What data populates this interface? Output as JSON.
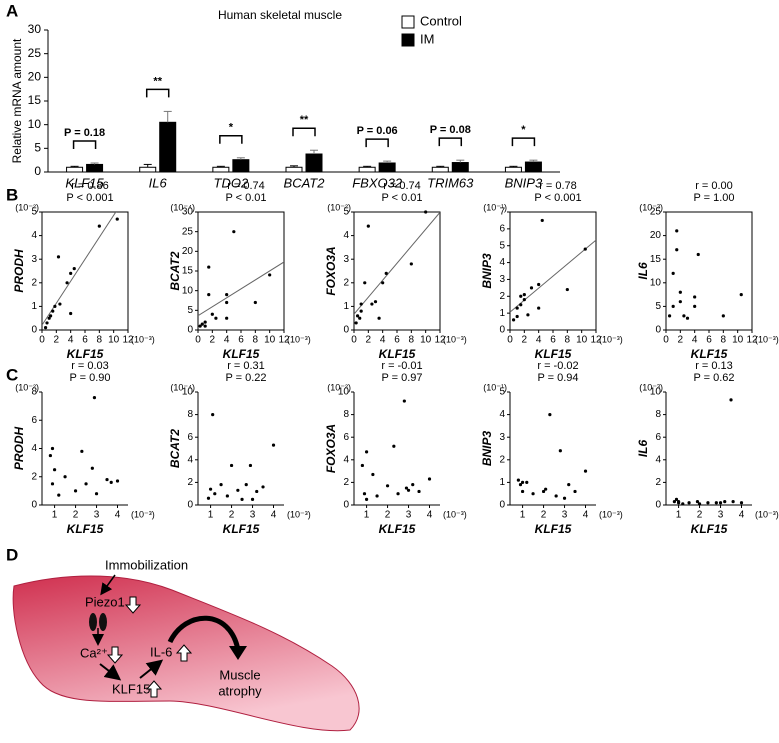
{
  "panel_labels": [
    "A",
    "B",
    "C",
    "D"
  ],
  "chart_data": [
    {
      "type": "bar",
      "title": "Human skeletal muscle",
      "ylabel": "Relative mRNA amount",
      "categories": [
        "KLF15",
        "IL6",
        "TDO2",
        "BCAT2",
        "FBXO32",
        "TRIM63",
        "BNIP3"
      ],
      "series": [
        {
          "name": "Control",
          "color": "#ffffff",
          "values": [
            1.0,
            1.0,
            1.0,
            1.0,
            1.0,
            1.0,
            1.0
          ],
          "errors": [
            0.2,
            0.6,
            0.2,
            0.3,
            0.2,
            0.2,
            0.2
          ]
        },
        {
          "name": "IM",
          "color": "#000000",
          "values": [
            1.6,
            10.5,
            2.6,
            3.8,
            1.9,
            2.0,
            2.1
          ],
          "errors": [
            0.3,
            2.3,
            0.4,
            0.8,
            0.4,
            0.5,
            0.4
          ]
        }
      ],
      "annotations": [
        "P = 0.18",
        "**",
        "*",
        "**",
        "P = 0.06",
        "P = 0.08",
        "*"
      ],
      "ylim": [
        0,
        30
      ],
      "yticks": [
        0,
        5,
        10,
        15,
        20,
        25,
        30
      ],
      "legend": "top-right"
    },
    {
      "type": "scatter",
      "stats": [
        "r = 0.86",
        "P < 0.001"
      ],
      "xlabel": "KLF15",
      "ylabel": "PRODH",
      "x_unit": "(10⁻³)",
      "y_unit": "(10⁻²)",
      "x": [
        0.5,
        0.7,
        1,
        1.2,
        1.5,
        1.8,
        2.3,
        2.5,
        3.5,
        4,
        4.5,
        4,
        8,
        10.5
      ],
      "y": [
        0.1,
        0.3,
        0.5,
        0.6,
        0.8,
        1.0,
        3.1,
        1.1,
        2.0,
        2.4,
        2.6,
        0.7,
        4.4,
        4.7
      ],
      "xlim": [
        0,
        12
      ],
      "xticks": [
        0,
        2,
        4,
        6,
        8,
        10,
        12
      ],
      "ylim": [
        0,
        5
      ],
      "yticks": [
        0,
        1,
        2,
        3,
        4,
        5
      ],
      "frame": "box",
      "trend": true,
      "color": "#000000"
    },
    {
      "type": "scatter",
      "stats": [
        "r = 0.74",
        "P < 0.01"
      ],
      "xlabel": "KLF15",
      "ylabel": "BCAT2",
      "x_unit": "(10⁻³)",
      "y_unit": "(10⁻⁴)",
      "x": [
        0.3,
        0.6,
        1,
        1.5,
        1.5,
        2,
        2.5,
        4,
        4,
        4,
        5,
        8,
        10,
        1
      ],
      "y": [
        1,
        1.5,
        1,
        16,
        9,
        4,
        3,
        3,
        7,
        9,
        25,
        7,
        14,
        2
      ],
      "xlim": [
        0,
        12
      ],
      "xticks": [
        0,
        2,
        4,
        6,
        8,
        10,
        12
      ],
      "ylim": [
        0,
        30
      ],
      "yticks": [
        0,
        5,
        10,
        15,
        20,
        25,
        30
      ],
      "frame": "box",
      "trend": true,
      "color": "#000000"
    },
    {
      "type": "scatter",
      "stats": [
        "r = 0.74",
        "P < 0.01"
      ],
      "xlabel": "KLF15",
      "ylabel": "FOXO3A",
      "x_unit": "(10⁻³)",
      "y_unit": "(10⁻²)",
      "x": [
        0.3,
        0.5,
        0.8,
        1,
        1,
        1.5,
        2,
        2.5,
        3,
        3.5,
        4,
        4.5,
        8,
        10
      ],
      "y": [
        0.3,
        0.6,
        0.5,
        1.1,
        0.8,
        2,
        4.4,
        1.1,
        1.2,
        0.5,
        2,
        2.4,
        2.8,
        5
      ],
      "xlim": [
        0,
        12
      ],
      "xticks": [
        0,
        2,
        4,
        6,
        8,
        10,
        12
      ],
      "ylim": [
        0,
        5
      ],
      "yticks": [
        0,
        1,
        2,
        3,
        4,
        5
      ],
      "frame": "box",
      "trend": true,
      "color": "#000000"
    },
    {
      "type": "scatter",
      "stats": [
        "r = 0.78",
        "P < 0.001"
      ],
      "xlabel": "KLF15",
      "ylabel": "BNIP3",
      "x_unit": "(10⁻³)",
      "y_unit": "(10⁻¹)",
      "x": [
        0.5,
        1,
        1,
        1.5,
        1.5,
        2,
        2,
        2.5,
        3,
        4,
        4,
        4.5,
        8,
        10.5
      ],
      "y": [
        0.6,
        0.8,
        1.3,
        2,
        1.5,
        1.8,
        2.1,
        0.9,
        2.5,
        1.3,
        2.7,
        6.5,
        2.4,
        4.8
      ],
      "xlim": [
        0,
        12
      ],
      "xticks": [
        0,
        2,
        4,
        6,
        8,
        10,
        12
      ],
      "ylim": [
        0,
        7
      ],
      "yticks": [
        0,
        1,
        2,
        3,
        4,
        5,
        6,
        7
      ],
      "frame": "box",
      "trend": true,
      "color": "#000000"
    },
    {
      "type": "scatter",
      "stats": [
        "r = 0.00",
        "P = 1.00"
      ],
      "xlabel": "KLF15",
      "ylabel": "IL6",
      "x_unit": "(10⁻³)",
      "y_unit": "(10⁻³)",
      "x": [
        0.5,
        1,
        1,
        1.5,
        1.5,
        2,
        2,
        2.5,
        3,
        4,
        4,
        4.5,
        8,
        10.5
      ],
      "y": [
        3,
        12,
        5,
        21,
        17,
        6,
        8,
        3,
        2.5,
        5,
        7,
        16,
        3,
        7.5
      ],
      "xlim": [
        0,
        12
      ],
      "xticks": [
        0,
        2,
        4,
        6,
        8,
        10,
        12
      ],
      "ylim": [
        0,
        25
      ],
      "yticks": [
        0,
        5,
        10,
        15,
        20,
        25
      ],
      "frame": "box",
      "trend": false,
      "color": "#000000"
    },
    {
      "type": "scatter",
      "stats": [
        "r = 0.03",
        "P = 0.90"
      ],
      "xlabel": "KLF15",
      "ylabel": "PRODH",
      "x_unit": "(10⁻³)",
      "y_unit": "(10⁻²)",
      "x": [
        0.8,
        0.9,
        0.9,
        1,
        1.2,
        1.5,
        2,
        2.3,
        2.5,
        2.8,
        2.9,
        3,
        3.5,
        3.7,
        4
      ],
      "y": [
        3.5,
        4,
        1.5,
        2.5,
        0.7,
        2,
        1,
        3.8,
        1.5,
        2.6,
        7.6,
        0.8,
        1.8,
        1.6,
        1.7
      ],
      "xlim": [
        0.4,
        4.5
      ],
      "xticks": [
        1,
        2,
        3,
        4
      ],
      "ylim": [
        0,
        8
      ],
      "yticks": [
        0,
        2,
        4,
        6,
        8
      ],
      "frame": "axes",
      "trend": false,
      "color": "#000000"
    },
    {
      "type": "scatter",
      "stats": [
        "r = 0.31",
        "P = 0.22"
      ],
      "xlabel": "KLF15",
      "ylabel": "BCAT2",
      "x_unit": "(10⁻³)",
      "y_unit": "(10⁻⁴)",
      "x": [
        0.9,
        1,
        1.1,
        1.2,
        1.5,
        1.8,
        2,
        2.3,
        2.5,
        2.7,
        2.9,
        3.2,
        3.5,
        4,
        3
      ],
      "y": [
        0.6,
        1.4,
        8,
        1,
        1.8,
        0.8,
        3.5,
        1.3,
        0.5,
        1.8,
        3.5,
        1.2,
        1.6,
        5.3,
        0.5
      ],
      "xlim": [
        0.4,
        4.5
      ],
      "xticks": [
        1,
        2,
        3,
        4
      ],
      "ylim": [
        0,
        10
      ],
      "yticks": [
        0,
        2,
        4,
        6,
        8,
        10
      ],
      "frame": "axes",
      "trend": false,
      "color": "#000000"
    },
    {
      "type": "scatter",
      "stats": [
        "r = -0.01",
        "P = 0.97"
      ],
      "xlabel": "KLF15",
      "ylabel": "FOXO3A",
      "x_unit": "(10⁻³)",
      "y_unit": "(10⁻²)",
      "x": [
        0.8,
        0.9,
        1,
        1,
        1.3,
        1.5,
        2,
        2.3,
        2.5,
        2.8,
        3,
        3.2,
        3.5,
        4,
        2.9
      ],
      "y": [
        3.5,
        1,
        4.7,
        0.5,
        2.7,
        0.8,
        1.7,
        5.2,
        1,
        9.2,
        1.3,
        1.8,
        1.2,
        2.3,
        1.5
      ],
      "xlim": [
        0.4,
        4.5
      ],
      "xticks": [
        1,
        2,
        3,
        4
      ],
      "ylim": [
        0,
        10
      ],
      "yticks": [
        0,
        2,
        4,
        6,
        8,
        10
      ],
      "frame": "axes",
      "trend": false,
      "color": "#000000"
    },
    {
      "type": "scatter",
      "stats": [
        "r = -0.02",
        "P = 0.94"
      ],
      "xlabel": "KLF15",
      "ylabel": "BNIP3",
      "x_unit": "(10⁻³)",
      "y_unit": "(10⁻¹)",
      "x": [
        0.8,
        0.9,
        1,
        1,
        1.2,
        1.5,
        2,
        2.3,
        2.6,
        2.8,
        3,
        3.2,
        3.5,
        4,
        2.1
      ],
      "y": [
        1.1,
        0.9,
        1,
        0.6,
        1,
        0.5,
        0.6,
        4,
        0.4,
        2.4,
        0.3,
        0.9,
        0.6,
        1.5,
        0.7
      ],
      "xlim": [
        0.4,
        4.5
      ],
      "xticks": [
        1,
        2,
        3,
        4
      ],
      "ylim": [
        0,
        5
      ],
      "yticks": [
        0,
        1,
        2,
        3,
        4,
        5
      ],
      "frame": "axes",
      "trend": false,
      "color": "#000000"
    },
    {
      "type": "scatter",
      "stats": [
        "r = 0.13",
        "P = 0.62"
      ],
      "xlabel": "KLF15",
      "ylabel": "IL6",
      "x_unit": "(10⁻³)",
      "y_unit": "(10⁻³)",
      "x": [
        0.8,
        0.9,
        1,
        1,
        1.2,
        1.5,
        1.9,
        2,
        2.4,
        2.8,
        3,
        3.2,
        3.5,
        4,
        3.6
      ],
      "y": [
        0.3,
        0.5,
        0.3,
        0.2,
        0.1,
        0.2,
        0.3,
        0.1,
        0.2,
        0.2,
        0.2,
        0.3,
        9.3,
        0.2,
        0.3
      ],
      "xlim": [
        0.4,
        4.5
      ],
      "xticks": [
        1,
        2,
        3,
        4
      ],
      "ylim": [
        0,
        10
      ],
      "yticks": [
        0,
        2,
        4,
        6,
        8,
        10
      ],
      "frame": "axes",
      "trend": false,
      "color": "#000000"
    }
  ],
  "diagram": {
    "immobilization": "Immobilization",
    "piezo1": "Piezo1",
    "calcium": "Ca²⁺",
    "klf15": "KLF15",
    "il6": "IL-6",
    "atrophy": [
      "Muscle",
      "atrophy"
    ]
  }
}
